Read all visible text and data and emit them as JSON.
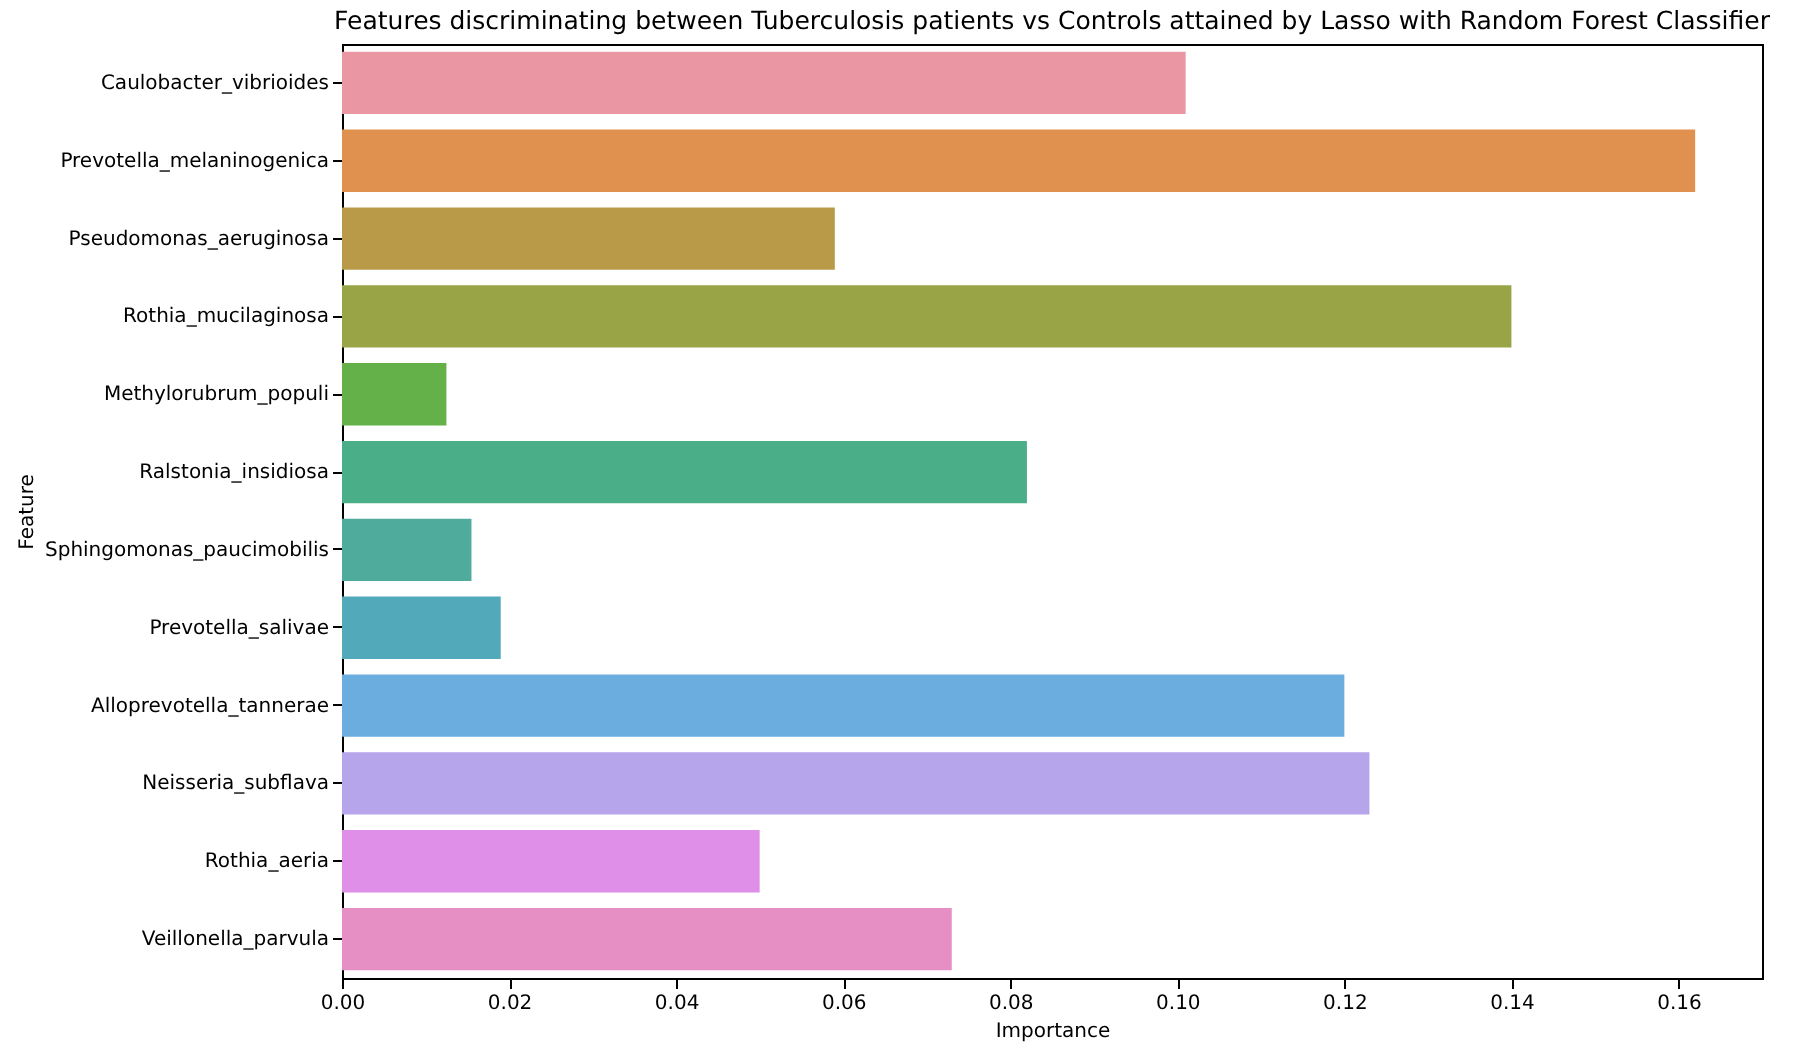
{
  "chart_data": {
    "type": "bar",
    "orientation": "horizontal",
    "title": "Features discriminating between Tuberculosis patients vs Controls attained by Lasso with Random Forest Classifier",
    "xlabel": "Importance",
    "ylabel": "Feature",
    "categories": [
      "Caulobacter_vibrioides",
      "Prevotella_melaninogenica",
      "Pseudomonas_aeruginosa",
      "Rothia_mucilaginosa",
      "Methylorubrum_populi",
      "Ralstonia_insidiosa",
      "Sphingomonas_paucimobilis",
      "Prevotella_salivae",
      "Alloprevotella_tannerae",
      "Neisseria_subflava",
      "Rothia_aeria",
      "Veillonella_parvula"
    ],
    "values": [
      0.101,
      0.162,
      0.059,
      0.14,
      0.0125,
      0.082,
      0.0155,
      0.019,
      0.12,
      0.123,
      0.05,
      0.073
    ],
    "colors": [
      "#ea96a3",
      "#e1914f",
      "#b89a48",
      "#98a446",
      "#63b148",
      "#4aae88",
      "#4fac9c",
      "#51a9b9",
      "#6badde",
      "#b6a5ea",
      "#e08fe8",
      "#e68fc5"
    ],
    "xlim": [
      0,
      0.17
    ],
    "xticks": [
      {
        "value": 0,
        "label": "0.00"
      },
      {
        "value": 0.02,
        "label": "0.02"
      },
      {
        "value": 0.04,
        "label": "0.04"
      },
      {
        "value": 0.06,
        "label": "0.06"
      },
      {
        "value": 0.08,
        "label": "0.08"
      },
      {
        "value": 0.1,
        "label": "0.10"
      },
      {
        "value": 0.12,
        "label": "0.12"
      },
      {
        "value": 0.14,
        "label": "0.14"
      },
      {
        "value": 0.16,
        "label": "0.16"
      }
    ],
    "grid": false,
    "legend": false
  }
}
